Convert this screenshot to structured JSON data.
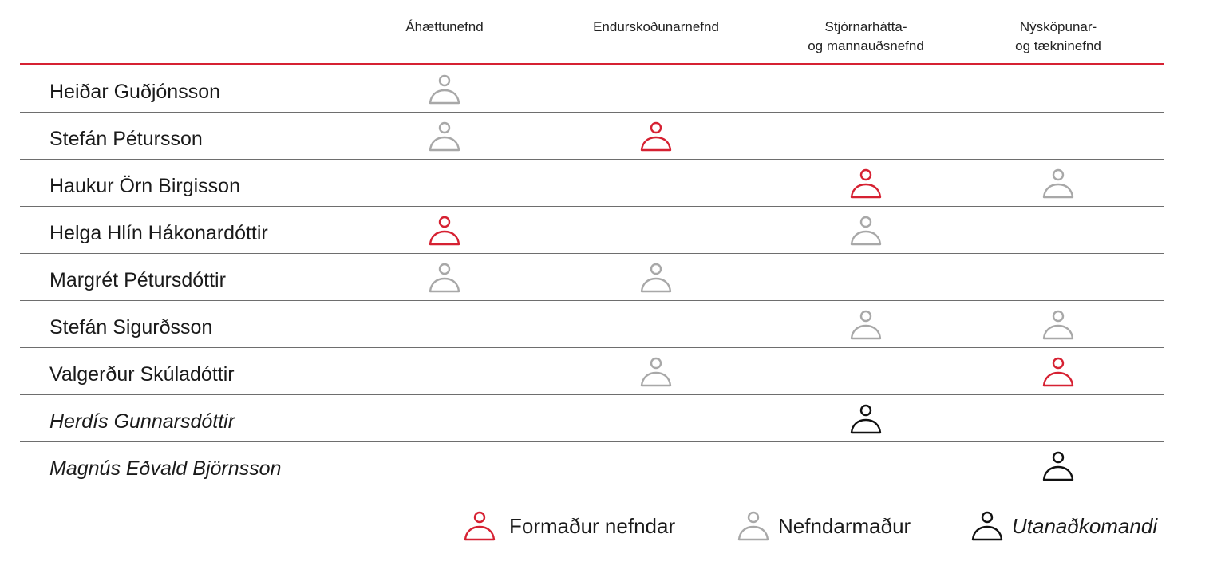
{
  "colors": {
    "chair": "#d62132",
    "member": "#a8a8a8",
    "external": "#111111",
    "rule": "#d62132"
  },
  "committees": [
    {
      "line1": "Áhættunefnd",
      "line2": ""
    },
    {
      "line1": "Endurskoðunarnefnd",
      "line2": ""
    },
    {
      "line1": "Stjórnarhátta-",
      "line2": "og mannauðsnefnd"
    },
    {
      "line1": "Nýsköpunar-",
      "line2": "og tækninefnd"
    }
  ],
  "members": [
    {
      "name": "Heiðar Guðjónsson",
      "external": false,
      "roles": [
        "member",
        "",
        "",
        ""
      ]
    },
    {
      "name": "Stefán Pétursson",
      "external": false,
      "roles": [
        "member",
        "chair",
        "",
        ""
      ]
    },
    {
      "name": "Haukur Örn Birgisson",
      "external": false,
      "roles": [
        "",
        "",
        "chair",
        "member"
      ]
    },
    {
      "name": "Helga Hlín Hákonardóttir",
      "external": false,
      "roles": [
        "chair",
        "",
        "member",
        ""
      ]
    },
    {
      "name": "Margrét Pétursdóttir",
      "external": false,
      "roles": [
        "member",
        "member",
        "",
        ""
      ]
    },
    {
      "name": "Stefán Sigurðsson",
      "external": false,
      "roles": [
        "",
        "",
        "member",
        "member"
      ]
    },
    {
      "name": "Valgerður Skúladóttir",
      "external": false,
      "roles": [
        "",
        "member",
        "",
        "chair"
      ]
    },
    {
      "name": "Herdís Gunnarsdóttir",
      "external": true,
      "roles": [
        "",
        "",
        "external",
        ""
      ]
    },
    {
      "name": "Magnús Eðvald Björnsson",
      "external": true,
      "roles": [
        "",
        "",
        "",
        "external"
      ]
    }
  ],
  "legend": {
    "chair": "Formaður nefndar",
    "member": "Nefndarmaður",
    "external": "Utanaðkomandi"
  },
  "icons": {
    "chair": "person-icon-red",
    "member": "person-icon-gray",
    "external": "person-icon-black"
  }
}
